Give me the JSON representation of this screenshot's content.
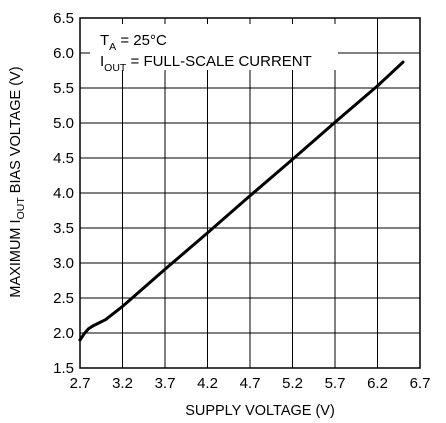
{
  "chart_data": {
    "type": "line",
    "xlabel": "SUPPLY VOLTAGE (V)",
    "ylabel": {
      "main_before": "MAXIMUM I",
      "subscript": "OUT",
      "main_after": " BIAS VOLTAGE (V)"
    },
    "xlim": [
      2.7,
      6.7
    ],
    "ylim": [
      1.5,
      6.5
    ],
    "x_ticks": [
      "2.7",
      "3.2",
      "3.7",
      "4.2",
      "4.7",
      "5.2",
      "5.7",
      "6.2",
      "6.7"
    ],
    "y_ticks": [
      "1.5",
      "2.0",
      "2.5",
      "3.0",
      "3.5",
      "4.0",
      "4.5",
      "5.0",
      "5.5",
      "6.0",
      "6.5"
    ],
    "grid": true,
    "annotations": [
      {
        "main": "T",
        "subscript": "A",
        "rest": " = 25°C"
      },
      {
        "main": "I",
        "subscript": "OUT",
        "rest": " = FULL-SCALE CURRENT"
      }
    ],
    "series": [
      {
        "x": [
          2.7,
          2.75,
          2.8,
          2.85,
          2.9,
          3.0,
          3.2,
          3.7,
          4.2,
          4.7,
          5.2,
          5.7,
          6.2,
          6.5
        ],
        "y": [
          1.9,
          1.99,
          2.06,
          2.1,
          2.13,
          2.19,
          2.38,
          2.91,
          3.43,
          3.96,
          4.48,
          5.01,
          5.53,
          5.87
        ]
      }
    ]
  }
}
